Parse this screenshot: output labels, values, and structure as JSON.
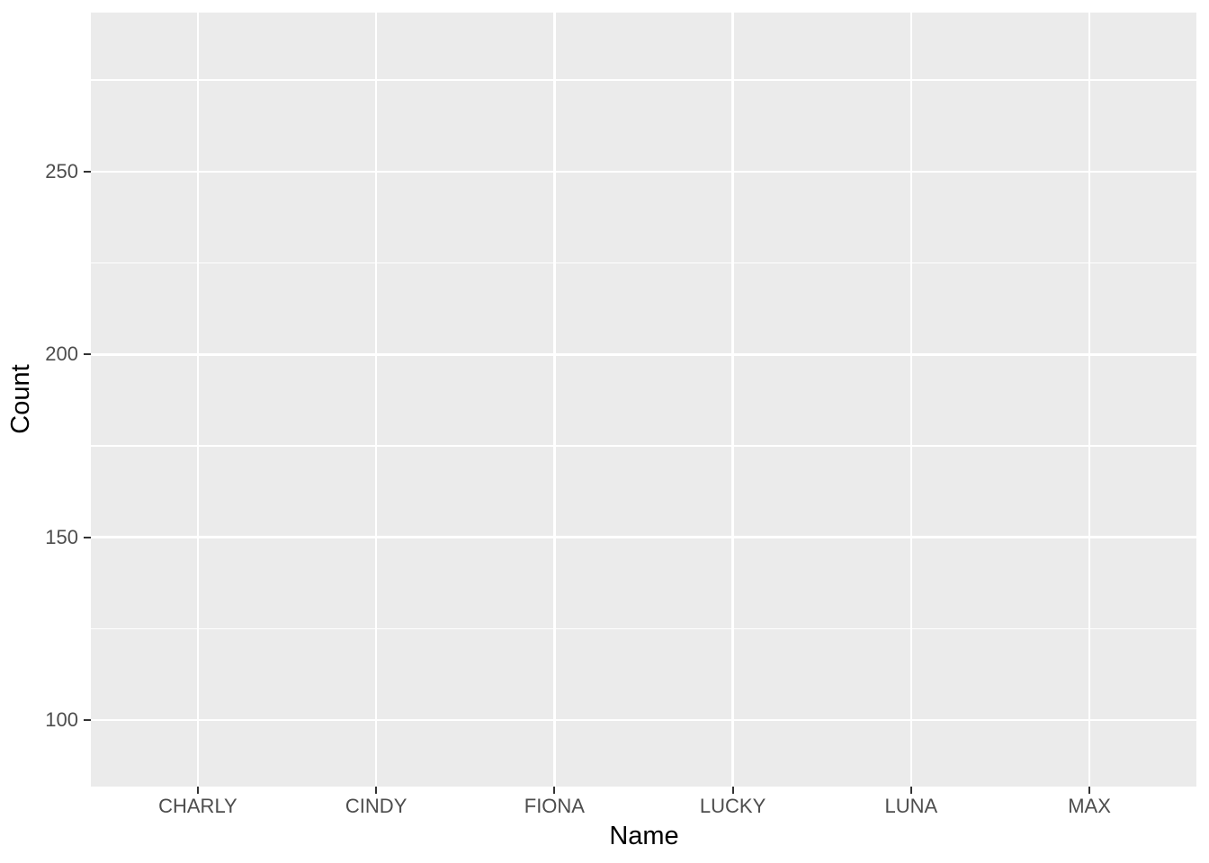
{
  "chart_data": {
    "type": "bar",
    "title": "",
    "xlabel": "Name",
    "ylabel": "Count",
    "categories": [
      "CHARLY",
      "CINDY",
      "FIONA",
      "LUCKY",
      "LUNA",
      "MAX"
    ],
    "values": [],
    "series": [],
    "ylim": [
      81.8,
      293.5
    ],
    "yticks_major": [
      100,
      150,
      200,
      250
    ],
    "yticks_minor": [
      125,
      175,
      225,
      275
    ],
    "y_tick_labels": [
      "100",
      "150",
      "200",
      "250"
    ],
    "x_band_padding": 0.6,
    "grid": true,
    "legend": false,
    "theme": "ggplot-gray",
    "colors": {
      "panel_background": "#EBEBEB",
      "gridline": "#FFFFFF",
      "tick_label": "#4D4D4D",
      "axis_title": "#000000",
      "tick_mark": "#333333",
      "figure_background": "#FFFFFF"
    }
  }
}
